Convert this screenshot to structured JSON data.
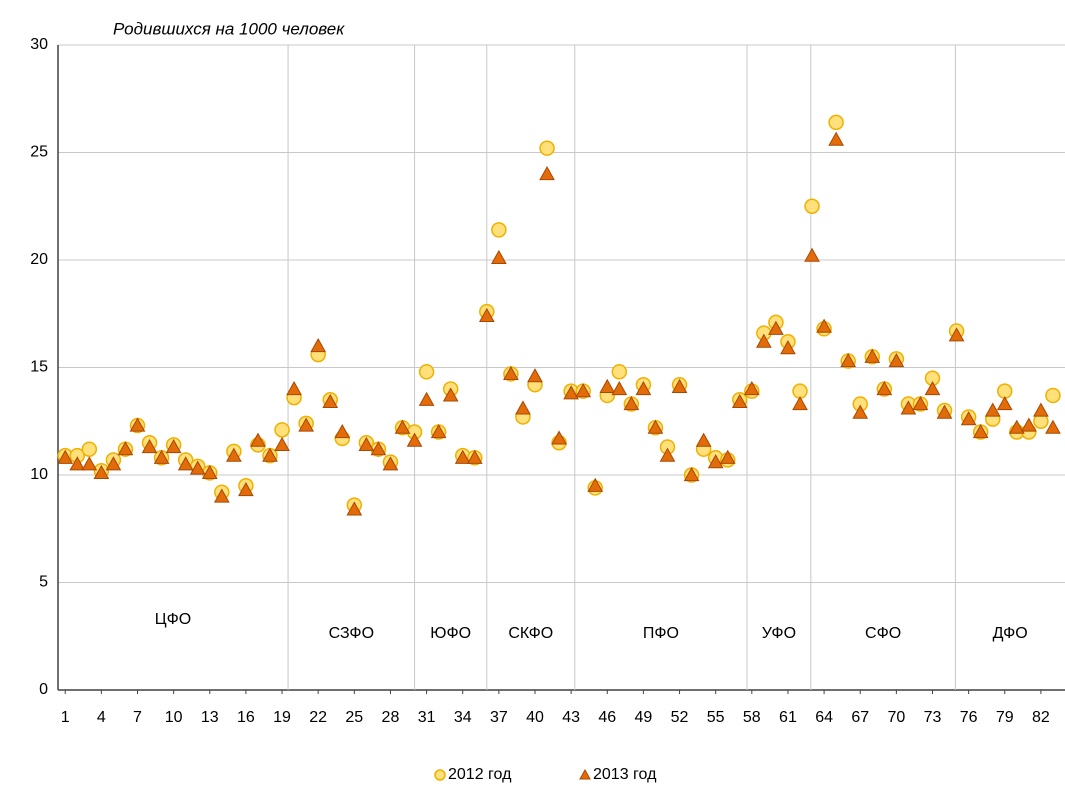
{
  "chart_data": {
    "type": "scatter",
    "title": "Родившихся на 1000 человек",
    "x": [
      1,
      2,
      3,
      4,
      5,
      6,
      7,
      8,
      9,
      10,
      11,
      12,
      13,
      14,
      15,
      16,
      17,
      18,
      19,
      20,
      21,
      22,
      23,
      24,
      25,
      26,
      27,
      28,
      29,
      30,
      31,
      32,
      33,
      34,
      35,
      36,
      37,
      38,
      39,
      40,
      41,
      42,
      43,
      44,
      45,
      46,
      47,
      48,
      49,
      50,
      51,
      52,
      53,
      54,
      55,
      56,
      57,
      58,
      59,
      60,
      61,
      62,
      63,
      64,
      65,
      66,
      67,
      68,
      69,
      70,
      71,
      72,
      73,
      74,
      75,
      76,
      77,
      78,
      79,
      80,
      81,
      82,
      83
    ],
    "series": [
      {
        "name": "2012 год",
        "marker": "circle",
        "color": "#ffe07a",
        "edge": "#f0b000",
        "values": [
          10.9,
          10.9,
          11.2,
          10.2,
          10.7,
          11.2,
          12.3,
          11.5,
          10.8,
          11.4,
          10.7,
          10.4,
          10.1,
          9.2,
          11.1,
          9.5,
          11.4,
          10.9,
          12.1,
          13.6,
          12.4,
          15.6,
          13.5,
          11.7,
          8.6,
          11.5,
          11.2,
          10.6,
          12.2,
          12.0,
          14.8,
          12.0,
          14.0,
          10.9,
          10.8,
          17.6,
          21.4,
          14.7,
          12.7,
          14.2,
          25.2,
          11.5,
          13.9,
          13.9,
          9.4,
          13.7,
          14.8,
          13.3,
          14.2,
          12.2,
          11.3,
          14.2,
          10.0,
          11.2,
          10.8,
          10.7,
          13.5,
          13.9,
          16.6,
          17.1,
          16.2,
          13.9,
          22.5,
          16.8,
          26.4,
          15.3,
          13.3,
          15.5,
          14.0,
          15.4,
          13.3,
          13.3,
          14.5,
          13.0,
          16.7,
          12.7,
          12.0,
          12.6,
          13.9,
          12.0,
          12.0,
          12.5,
          13.7
        ]
      },
      {
        "name": "2013 год",
        "marker": "triangle",
        "color": "#e36c0a",
        "edge": "#a84800",
        "values": [
          10.8,
          10.5,
          10.5,
          10.1,
          10.5,
          11.2,
          12.3,
          11.3,
          10.8,
          11.3,
          10.5,
          10.3,
          10.1,
          9.0,
          10.9,
          9.3,
          11.6,
          10.9,
          11.4,
          14.0,
          12.3,
          16.0,
          13.4,
          12.0,
          8.4,
          11.4,
          11.2,
          10.5,
          12.2,
          11.6,
          13.5,
          12.0,
          13.7,
          10.8,
          10.8,
          17.4,
          20.1,
          14.7,
          13.1,
          14.6,
          24.0,
          11.7,
          13.8,
          13.9,
          9.5,
          14.1,
          14.0,
          13.3,
          14.0,
          12.2,
          10.9,
          14.1,
          10.0,
          11.6,
          10.6,
          10.8,
          13.4,
          14.0,
          16.2,
          16.8,
          15.9,
          13.3,
          20.2,
          16.9,
          25.6,
          15.3,
          12.9,
          15.5,
          14.0,
          15.3,
          13.1,
          13.3,
          14.0,
          12.9,
          16.5,
          12.6,
          12.0,
          13.0,
          13.3,
          12.2,
          12.3,
          13.0,
          12.2
        ]
      }
    ],
    "xlim": [
      0.4,
      84
    ],
    "xticks": [
      1,
      4,
      7,
      10,
      13,
      16,
      19,
      22,
      25,
      28,
      31,
      34,
      37,
      40,
      43,
      46,
      49,
      52,
      55,
      58,
      61,
      64,
      67,
      70,
      73,
      76,
      79,
      82
    ],
    "ylim": [
      0,
      30
    ],
    "yticks": [
      0,
      5,
      10,
      15,
      20,
      25,
      30
    ],
    "grid": true,
    "region_boundaries": [
      19.5,
      30,
      36,
      43.3,
      57.6,
      62.9,
      74.9
    ],
    "regions": [
      "ЦФО",
      "СЗФО",
      "ЮФО",
      "СКФО",
      "ПФО",
      "УФО",
      "СФО",
      "ДФО"
    ],
    "legend": "bottom"
  }
}
